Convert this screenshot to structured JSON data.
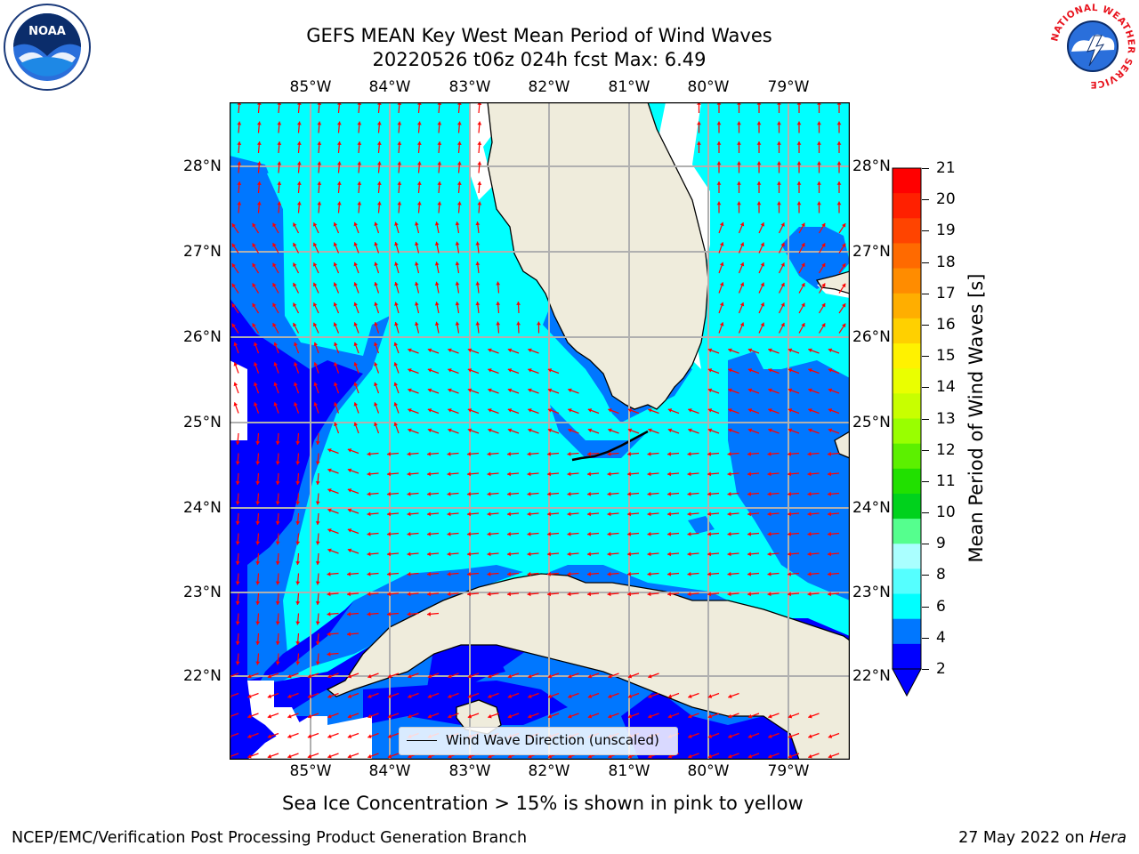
{
  "title": {
    "line1": "GEFS MEAN Key West Mean Period of Wind Waves",
    "line2": "20220526 t06z 024h fcst   Max: 6.49"
  },
  "lon_labels": [
    "85°W",
    "84°W",
    "83°W",
    "82°W",
    "81°W",
    "80°W",
    "79°W"
  ],
  "lat_labels": [
    "28°N",
    "27°N",
    "26°N",
    "25°N",
    "24°N",
    "23°N",
    "22°N"
  ],
  "legend": {
    "label": "Wind Wave Direction (unscaled)"
  },
  "colorbar": {
    "label": "Mean Period of Wind Waves [s]",
    "ticks": [
      "21",
      "20",
      "19",
      "18",
      "17",
      "16",
      "15",
      "14",
      "13",
      "12",
      "11",
      "10",
      "9",
      "8",
      "6",
      "4",
      "2"
    ],
    "colors": [
      "#ff0000",
      "#ff2000",
      "#ff4400",
      "#ff6a00",
      "#ff8c00",
      "#ffae00",
      "#ffd000",
      "#fff200",
      "#eaff00",
      "#c8ff00",
      "#99ff00",
      "#5cf000",
      "#21e000",
      "#00d21c",
      "#55ff8e",
      "#aaffff",
      "#55ffff",
      "#00ffff",
      "#0077ff",
      "#0000ff"
    ]
  },
  "footer": {
    "note": "Sea Ice Concentration > 15% is shown in pink to yellow",
    "left": "NCEP/EMC/Verification Post Processing Product Generation Branch",
    "date": "27 May 2022 on ",
    "host": "Hera"
  },
  "logos": {
    "noaa_text": "NOAA",
    "nws_text": "NATIONAL WEATHER SERVICE"
  },
  "map_colors": {
    "period_2_4": "#0077ff",
    "period_lt_2": "#0000ff",
    "period_4_6": "#00ffff",
    "land": "#efecdc",
    "arrow": "#ff0000",
    "grid": "#b0b0b0"
  }
}
